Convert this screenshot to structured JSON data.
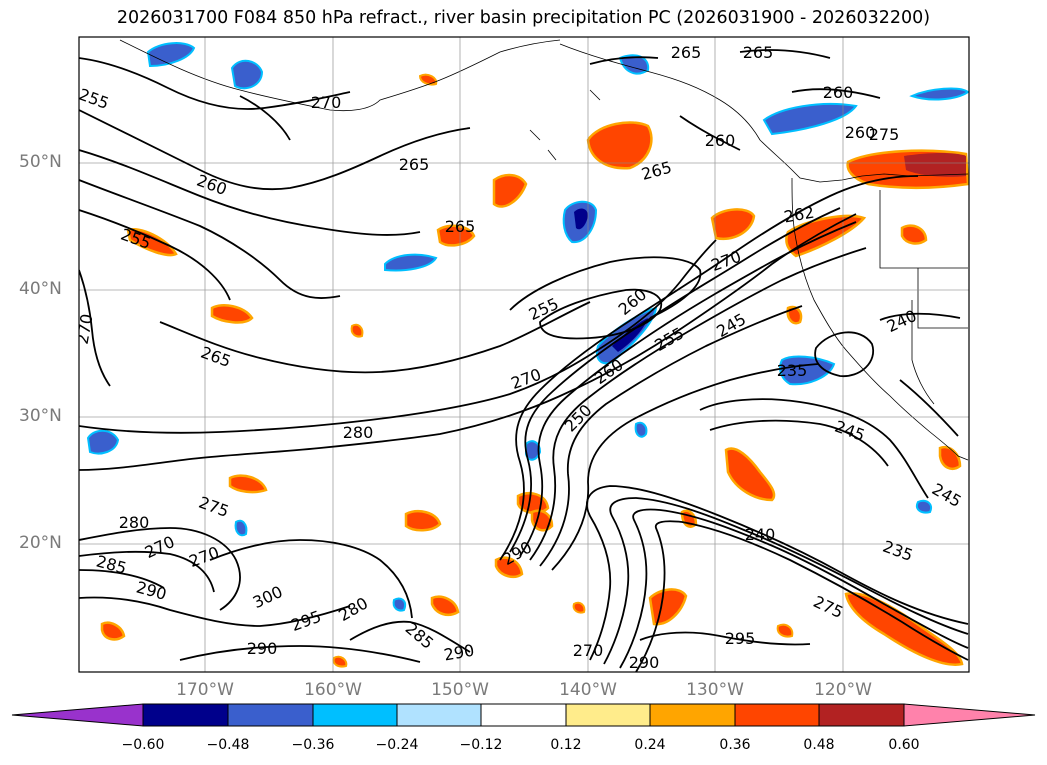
{
  "title": "2026031700 F084 850 hPa refract., river basin precipitation PC (2026031900 - 2026032200)",
  "lat_labels": [
    "50°N",
    "40°N",
    "30°N",
    "20°N"
  ],
  "lon_labels": [
    "170°W",
    "160°W",
    "150°W",
    "140°W",
    "130°W",
    "120°W"
  ],
  "contour_labels": [
    "255",
    "270",
    "265",
    "260",
    "265",
    "265",
    "260",
    "265",
    "260",
    "265",
    "260",
    "255",
    "270",
    "265",
    "270",
    "255",
    "260",
    "255",
    "245",
    "270",
    "260",
    "250",
    "240",
    "235",
    "245",
    "280",
    "245",
    "280",
    "270",
    "270",
    "275",
    "285",
    "290",
    "300",
    "295",
    "280",
    "285",
    "290",
    "290",
    "270",
    "290",
    "295",
    "240",
    "235",
    "275",
    "290",
    "262",
    "275"
  ],
  "colorbar": {
    "ticks": [
      "−0.60",
      "−0.48",
      "−0.36",
      "−0.24",
      "−0.12",
      "0.12",
      "0.24",
      "0.36",
      "0.48",
      "0.60"
    ],
    "colors": [
      "#9932cc",
      "#00008b",
      "#3a5fcd",
      "#00bfff",
      "#b0e2ff",
      "#ffffff",
      "#ffec8b",
      "#ffa500",
      "#ff4500",
      "#b22222",
      "#ff82ab"
    ]
  }
}
